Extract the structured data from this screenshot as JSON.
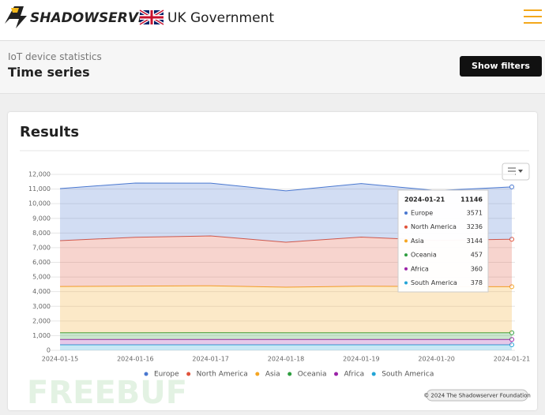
{
  "header": {
    "brand": "SHADOWSERVER",
    "partner": "UK Government"
  },
  "subheader": {
    "breadcrumb": "IoT device statistics",
    "title": "Time series",
    "button": "Show filters"
  },
  "results": {
    "title": "Results",
    "credits": "© 2024 The Shadowserver Foundation"
  },
  "watermark": "FREEBUF",
  "chart_data": {
    "type": "stacked-area",
    "x": [
      "2024-01-15",
      "2024-01-16",
      "2024-01-17",
      "2024-01-18",
      "2024-01-19",
      "2024-01-20",
      "2024-01-21"
    ],
    "series": [
      {
        "name": "Europe",
        "color": "#4a78d0",
        "values": [
          3550,
          3700,
          3600,
          3500,
          3650,
          3400,
          3571
        ]
      },
      {
        "name": "North America",
        "color": "#e0533b",
        "values": [
          3130,
          3330,
          3400,
          3070,
          3350,
          3150,
          3236
        ]
      },
      {
        "name": "Asia",
        "color": "#f5a623",
        "values": [
          3150,
          3180,
          3200,
          3110,
          3180,
          3150,
          3144
        ]
      },
      {
        "name": "Oceania",
        "color": "#2e9e3f",
        "values": [
          460,
          460,
          460,
          457,
          457,
          457,
          457
        ]
      },
      {
        "name": "Africa",
        "color": "#9b23a8",
        "values": [
          360,
          360,
          362,
          360,
          360,
          360,
          360
        ]
      },
      {
        "name": "South America",
        "color": "#23a5d6",
        "values": [
          380,
          380,
          380,
          378,
          378,
          378,
          378
        ]
      }
    ],
    "ylim": [
      0,
      12000
    ],
    "yticks": [
      0,
      {
        "value": 1000,
        "label": "1,000"
      },
      {
        "value": 2000,
        "label": "2,000"
      },
      {
        "value": 3000,
        "label": "3,000"
      },
      {
        "value": 4000,
        "label": "4,000"
      },
      {
        "value": 5000,
        "label": "5,000"
      },
      {
        "value": 6000,
        "label": "6,000"
      },
      {
        "value": 7000,
        "label": "7,000"
      },
      {
        "value": 8000,
        "label": "8,000"
      },
      {
        "value": 9000,
        "label": "9,000"
      },
      {
        "value": 10000,
        "label": "10,000"
      },
      {
        "value": 11000,
        "label": "11,000"
      },
      {
        "value": 12000,
        "label": "12,000"
      }
    ],
    "grid": true,
    "legend": "bottom",
    "tooltip_total": 11146
  }
}
